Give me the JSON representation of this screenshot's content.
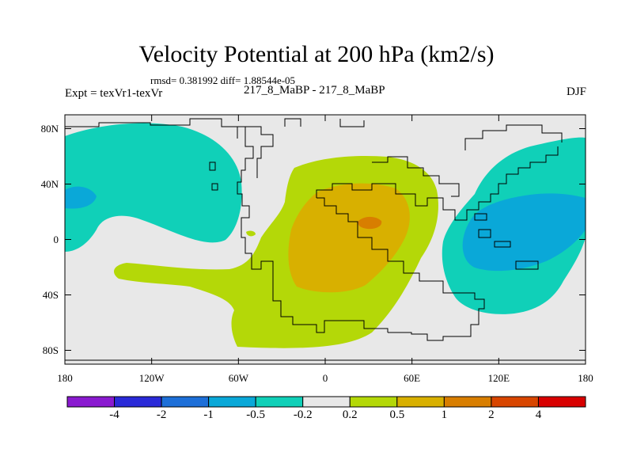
{
  "header": {
    "title": "Velocity Potential at 200 hPa (km2/s)",
    "stats": "rmsd= 0.381992 diff= 1.88544e-05",
    "experiment": "Expt = texVr1-texVr",
    "cases": "217_8_MaBP - 217_8_MaBP",
    "season": "DJF"
  },
  "colors": {
    "background_field": "#e8e8e8",
    "coastline": "#000000",
    "levels": [
      "#8a1ad0",
      "#2a2ad8",
      "#1d6fd8",
      "#0aa8d8",
      "#10d0b8",
      "#e8e8e8",
      "#b4d808",
      "#d8b000",
      "#d87e00",
      "#d84600",
      "#d80000"
    ]
  },
  "chart_data": {
    "type": "contour-map",
    "title": "Velocity Potential at 200 hPa (km2/s)",
    "variable": "velocity potential difference",
    "units": "km2/s",
    "level_hPa": 200,
    "season": "DJF",
    "projection": "cylindrical equidistant",
    "xlim": [
      -180,
      180
    ],
    "ylim": [
      -90,
      90
    ],
    "x_ticks": [
      -180,
      -120,
      -60,
      0,
      60,
      120,
      180
    ],
    "x_tick_labels": [
      "180",
      "120W",
      "60W",
      "0",
      "60E",
      "120E",
      "180"
    ],
    "y_ticks": [
      80,
      40,
      0,
      -40,
      -80
    ],
    "y_tick_labels": [
      "80N",
      "40N",
      "0",
      "40S",
      "80S"
    ],
    "colorbar": {
      "levels": [
        -4,
        -2,
        -1,
        -0.5,
        -0.2,
        0.2,
        0.5,
        1,
        2,
        4
      ],
      "labels": [
        "-4",
        "-2",
        "-1",
        "-0.5",
        "-0.2",
        "0.2",
        "0.5",
        "1",
        "2",
        "4"
      ]
    },
    "features": [
      {
        "name": "Pacific negative anomaly",
        "range": "-0.5 to -0.2",
        "center_lon": -150,
        "center_lat": 20
      },
      {
        "name": "western Pacific negative anomaly",
        "range": "-1 to -0.5",
        "center_lon": 120,
        "center_lat": 0
      },
      {
        "name": "Atlantic/Africa positive anomaly",
        "range": "0.2 to 1",
        "center_lon": 0,
        "center_lat": 0
      },
      {
        "name": "Africa maximum",
        "range": "1 to 2",
        "center_lon": 30,
        "center_lat": 8
      }
    ]
  }
}
